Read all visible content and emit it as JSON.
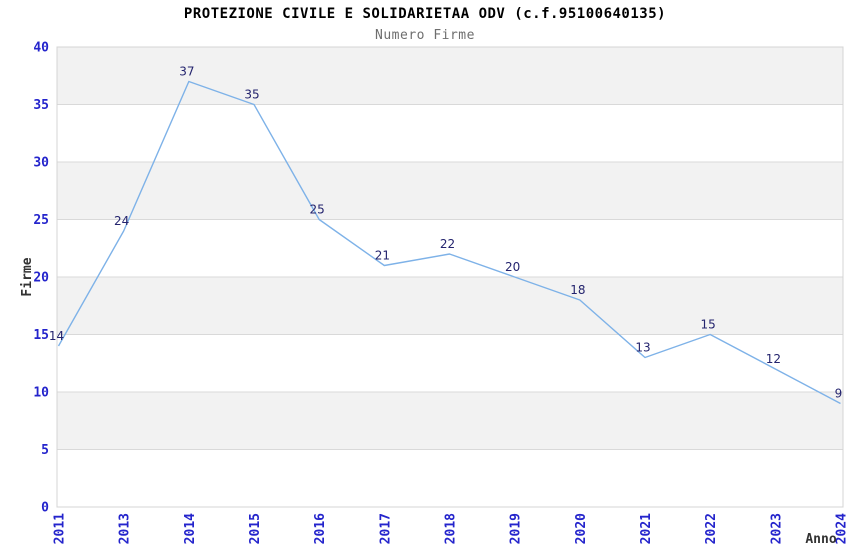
{
  "page": {
    "background": "#ffffff"
  },
  "chart_data": {
    "type": "line",
    "title": "PROTEZIONE CIVILE E SOLIDARIETAA ODV (c.f.95100640135)",
    "subtitle": "Numero Firme",
    "xlabel": "Anno",
    "ylabel": "Firme",
    "series_name": "Numero Firme",
    "categories": [
      "2011",
      "2013",
      "2014",
      "2015",
      "2016",
      "2017",
      "2018",
      "2019",
      "2020",
      "2021",
      "2022",
      "2023",
      "2024"
    ],
    "values": [
      14,
      24,
      37,
      35,
      25,
      21,
      22,
      20,
      18,
      13,
      15,
      12,
      9
    ],
    "ylim": [
      0,
      40
    ],
    "yticks": [
      0,
      5,
      10,
      15,
      20,
      25,
      30,
      35,
      40
    ],
    "data_labels_visible": true,
    "markers_visible": false,
    "legend": {
      "visible": false
    },
    "grid": {
      "horizontal_gridlines": true,
      "vertical_gridlines": false,
      "alternating_horizontal_bands": true
    },
    "x_tick_rotation_degrees": -90,
    "colors": {
      "line": "#7eb2e8",
      "data_label": "#24246e",
      "axis_tick_label": "#2424cc",
      "axis_title": "#333333",
      "band": "#f2f2f2",
      "gridline": "#d9d9d9",
      "plot_border": "#d4d4d4",
      "title": "#000000",
      "subtitle": "#6e6e6e",
      "background": "#ffffff"
    }
  }
}
